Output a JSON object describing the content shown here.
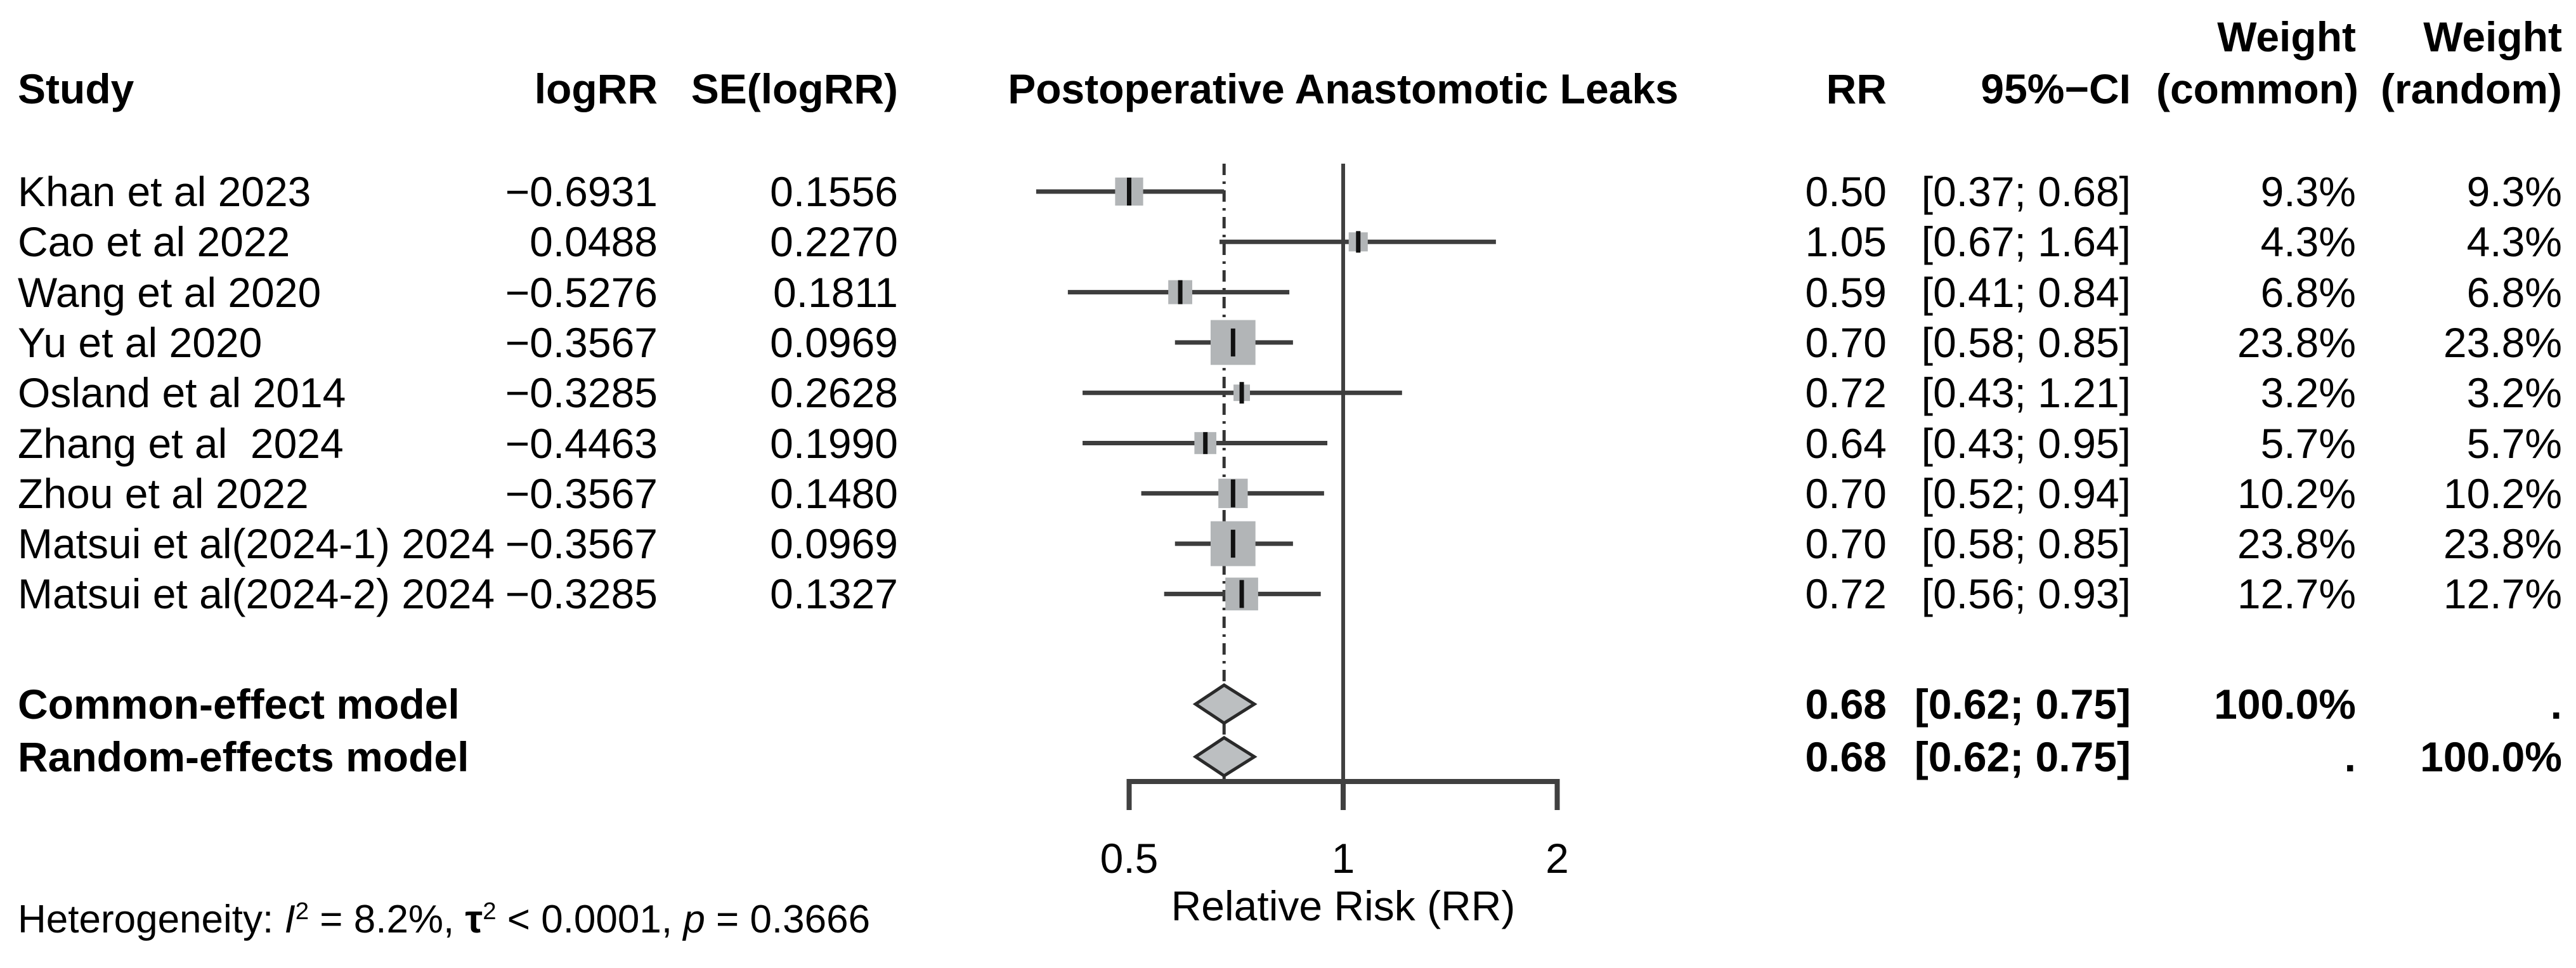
{
  "page": {
    "background": "#ffffff"
  },
  "chart_data": {
    "type": "forest",
    "title": "Postoperative Anastomotic Leaks",
    "columns": {
      "study": "Study",
      "logrr": "logRR",
      "se": "SE(logRR)",
      "rr": "RR",
      "ci": "95%−CI",
      "weight_word_common": "Weight",
      "weight_word_random": "Weight",
      "weight_common": "(common)",
      "weight_random": "(random)"
    },
    "x_axis": {
      "label": "Relative Risk (RR)",
      "scale": "log",
      "ticks": [
        0.5,
        1,
        2
      ],
      "tick_labels": [
        "0.5",
        "1",
        "2"
      ],
      "range": [
        0.5,
        2
      ]
    },
    "ref_line": 1.0,
    "pooled_line": 0.68,
    "studies": [
      {
        "name": "Khan et al 2023",
        "logrr": "−0.6931",
        "se": "0.1556",
        "rr": 0.5,
        "ci_lo": 0.37,
        "ci_hi": 0.68,
        "rr_text": "0.50",
        "ci_text": "[0.37; 0.68]",
        "weight_pct": 9.3,
        "w_common": "9.3%",
        "w_random": "9.3%"
      },
      {
        "name": "Cao et al 2022",
        "logrr": "0.0488",
        "se": "0.2270",
        "rr": 1.05,
        "ci_lo": 0.67,
        "ci_hi": 1.64,
        "rr_text": "1.05",
        "ci_text": "[0.67; 1.64]",
        "weight_pct": 4.3,
        "w_common": "4.3%",
        "w_random": "4.3%"
      },
      {
        "name": "Wang et al 2020",
        "logrr": "−0.5276",
        "se": "0.1811",
        "rr": 0.59,
        "ci_lo": 0.41,
        "ci_hi": 0.84,
        "rr_text": "0.59",
        "ci_text": "[0.41; 0.84]",
        "weight_pct": 6.8,
        "w_common": "6.8%",
        "w_random": "6.8%"
      },
      {
        "name": "Yu et al 2020",
        "logrr": "−0.3567",
        "se": "0.0969",
        "rr": 0.7,
        "ci_lo": 0.58,
        "ci_hi": 0.85,
        "rr_text": "0.70",
        "ci_text": "[0.58; 0.85]",
        "weight_pct": 23.8,
        "w_common": "23.8%",
        "w_random": "23.8%"
      },
      {
        "name": "Osland et al 2014",
        "logrr": "−0.3285",
        "se": "0.2628",
        "rr": 0.72,
        "ci_lo": 0.43,
        "ci_hi": 1.21,
        "rr_text": "0.72",
        "ci_text": "[0.43; 1.21]",
        "weight_pct": 3.2,
        "w_common": "3.2%",
        "w_random": "3.2%"
      },
      {
        "name": "Zhang et al  2024",
        "logrr": "−0.4463",
        "se": "0.1990",
        "rr": 0.64,
        "ci_lo": 0.43,
        "ci_hi": 0.95,
        "rr_text": "0.64",
        "ci_text": "[0.43; 0.95]",
        "weight_pct": 5.7,
        "w_common": "5.7%",
        "w_random": "5.7%"
      },
      {
        "name": "Zhou et al 2022",
        "logrr": "−0.3567",
        "se": "0.1480",
        "rr": 0.7,
        "ci_lo": 0.52,
        "ci_hi": 0.94,
        "rr_text": "0.70",
        "ci_text": "[0.52; 0.94]",
        "weight_pct": 10.2,
        "w_common": "10.2%",
        "w_random": "10.2%"
      },
      {
        "name": "Matsui et al(2024-1) 2024",
        "logrr": "−0.3567",
        "se": "0.0969",
        "rr": 0.7,
        "ci_lo": 0.58,
        "ci_hi": 0.85,
        "rr_text": "0.70",
        "ci_text": "[0.58; 0.85]",
        "weight_pct": 23.8,
        "w_common": "23.8%",
        "w_random": "23.8%"
      },
      {
        "name": "Matsui et al(2024-2) 2024",
        "logrr": "−0.3285",
        "se": "0.1327",
        "rr": 0.72,
        "ci_lo": 0.56,
        "ci_hi": 0.93,
        "rr_text": "0.72",
        "ci_text": "[0.56; 0.93]",
        "weight_pct": 12.7,
        "w_common": "12.7%",
        "w_random": "12.7%"
      }
    ],
    "summaries": [
      {
        "name": "Common-effect model",
        "rr": 0.68,
        "ci_lo": 0.62,
        "ci_hi": 0.75,
        "rr_text": "0.68",
        "ci_text": "[0.62; 0.75]",
        "w_common": "100.0%",
        "w_random": "."
      },
      {
        "name": "Random-effects model",
        "rr": 0.68,
        "ci_lo": 0.62,
        "ci_hi": 0.75,
        "rr_text": "0.68",
        "ci_text": "[0.62; 0.75]",
        "w_common": ".",
        "w_random": "100.0%"
      }
    ],
    "heterogeneity_parts": {
      "prefix": "Heterogeneity: ",
      "i_sym": "I",
      "i_sup": "2",
      "i_rest": " = 8.2%, ",
      "tau_sym": "τ",
      "tau_sup": "2",
      "tau_rest": " < 0.0001, ",
      "p_sym": "p",
      "p_rest": " = 0.3666"
    }
  },
  "colors": {
    "text": "#000000",
    "ci_line": "#3d3d3d",
    "axis_line": "#404040",
    "ref_line": "#404040",
    "pooled_line": "#333333",
    "square_fill": "#b2b5b7",
    "square_tick": "#111111",
    "diamond_fill": "#bcbfc1",
    "diamond_stroke": "#2a2a2a"
  }
}
